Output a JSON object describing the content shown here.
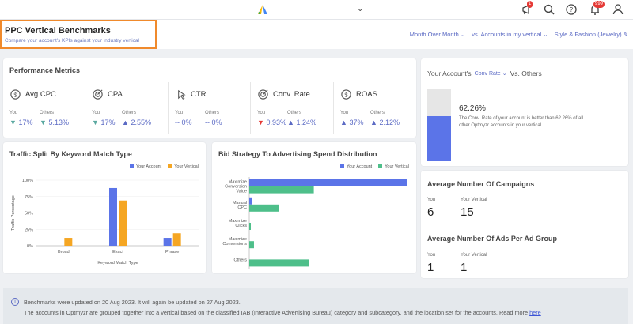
{
  "topbar": {
    "notif_badge_1": "1",
    "notif_badge_2": "999"
  },
  "header": {
    "title": "PPC Vertical Benchmarks",
    "subtitle": "Compare your account's KPIs against your industry vertical",
    "filters": {
      "period": "Month Over Month",
      "comparison": "vs. Accounts in my vertical",
      "vertical": "Style & Fashion (Jewelry)"
    }
  },
  "performance": {
    "title": "Performance Metrics",
    "metrics": [
      {
        "name": "Avg CPC",
        "icon": "dollar-refresh-icon",
        "you_label": "You",
        "others_label": "Others",
        "you": "17%",
        "you_arrow": "▼",
        "others": "5.13%",
        "others_arrow": "▼"
      },
      {
        "name": "CPA",
        "icon": "target-icon",
        "you_label": "You",
        "others_label": "Others",
        "you": "17%",
        "you_arrow": "▼",
        "others": "2.55%",
        "others_arrow": "▲"
      },
      {
        "name": "CTR",
        "icon": "cursor-icon",
        "you_label": "You",
        "others_label": "Others",
        "you": "0%",
        "you_arrow": "--",
        "others": "0%",
        "others_arrow": "--"
      },
      {
        "name": "Conv. Rate",
        "icon": "target-icon",
        "you_label": "You",
        "others_label": "Others",
        "you": "0.93%",
        "you_arrow": "▼",
        "others": "1.24%",
        "others_arrow": "▲"
      },
      {
        "name": "ROAS",
        "icon": "dollar-icon",
        "you_label": "You",
        "others_label": "Others",
        "you": "37%",
        "you_arrow": "▲",
        "others": "2.12%",
        "others_arrow": "▲"
      }
    ]
  },
  "versus": {
    "title_prefix": "Your Account's",
    "metric": "Conv Rate",
    "title_suffix": "Vs. Others",
    "percent": "62.26%",
    "fill_fraction": 0.62,
    "description": "The Conv. Rate of your account is better than 62.26% of all other Optmyzr accounts in your vertical."
  },
  "traffic_chart": {
    "title": "Traffic Split By Keyword Match Type",
    "legend": [
      "Your Account",
      "Your Vertical"
    ],
    "y_ticks": [
      "100%",
      "75%",
      "50%",
      "25%",
      "0%"
    ],
    "ylabel": "Traffic Percentage",
    "xlabel": "Keyword Match Type"
  },
  "bid_chart": {
    "title": "Bid Strategy To Advertising Spend Distribution",
    "legend": [
      "Your Account",
      "Your Vertical"
    ],
    "label_lines": [
      [
        "Maximize",
        "Conversion",
        "Value"
      ],
      [
        "Manual",
        "CPC"
      ],
      [
        "Maximize",
        "Clicks"
      ],
      [
        "Maximize",
        "Conversions"
      ],
      [
        "Others"
      ]
    ]
  },
  "campaigns": {
    "title": "Average Number Of Campaigns",
    "you_label": "You",
    "you": "6",
    "vertical_label": "Your Vertical",
    "vertical": "15"
  },
  "ads": {
    "title": "Average Number Of Ads Per Ad Group",
    "you_label": "You",
    "you": "1",
    "vertical_label": "Your Vertical",
    "vertical": "1"
  },
  "footer": {
    "line1": "Benchmarks were updated on 20 Aug 2023. It will again be updated on 27 Aug 2023.",
    "line2": "The accounts in Optmyzr are grouped together into a vertical based on the classified IAB (Interactive Advertising Bureau) category and subcategory, and the location set for the accounts. Read more",
    "link": "here"
  },
  "colors": {
    "account": "#5b74e8",
    "vertical": "#f5a623",
    "vertical_bid": "#4ebf8a",
    "accent": "#5b6ac4"
  },
  "chart_data": [
    {
      "type": "bar",
      "title": "Traffic Split By Keyword Match Type",
      "xlabel": "Keyword Match Type",
      "ylabel": "Traffic Percentage",
      "categories": [
        "Broad",
        "Exact",
        "Phrase"
      ],
      "series": [
        {
          "name": "Your Account",
          "values": [
            0,
            88,
            12
          ]
        },
        {
          "name": "Your Vertical",
          "values": [
            12,
            69,
            19
          ]
        }
      ],
      "ylim": [
        0,
        100
      ],
      "legend": "top-right"
    },
    {
      "type": "bar",
      "orientation": "horizontal",
      "title": "Bid Strategy To Advertising Spend Distribution",
      "categories": [
        "Maximize Conversion Value",
        "Manual CPC",
        "Maximize Clicks",
        "Maximize Conversions",
        "Others"
      ],
      "series": [
        {
          "name": "Your Account",
          "values": [
            100,
            2,
            0,
            0,
            0
          ]
        },
        {
          "name": "Your Vertical",
          "values": [
            41,
            19,
            1,
            3,
            38
          ]
        }
      ],
      "xlim": [
        0,
        100
      ],
      "legend": "top-right"
    }
  ]
}
